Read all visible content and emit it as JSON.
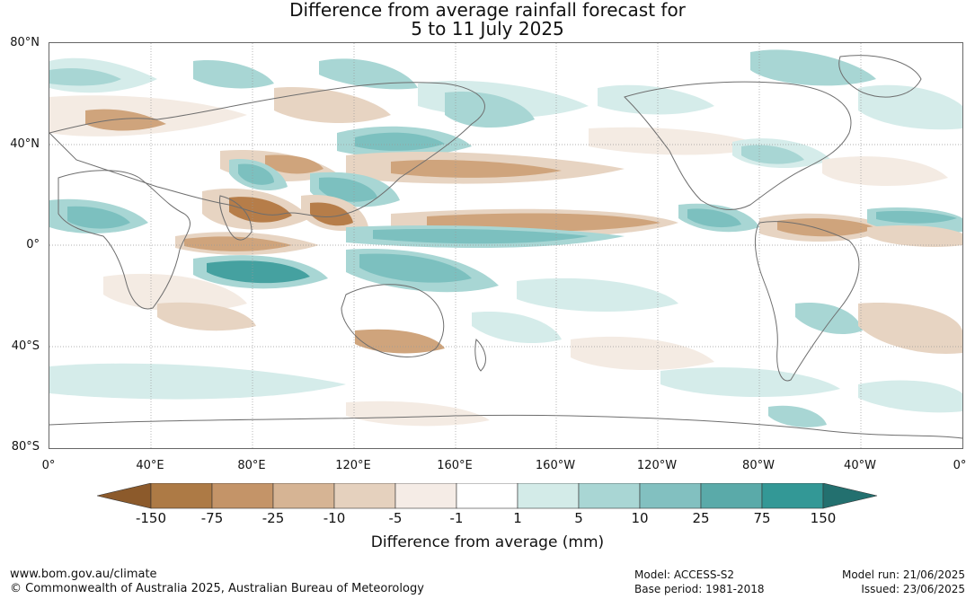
{
  "title_line1": "Difference from average rainfall forecast for",
  "title_line2": "5 to 11 July 2025",
  "lat_labels": [
    "80°N",
    "40°N",
    "0°",
    "40°S",
    "80°S"
  ],
  "lon_labels": [
    "0°",
    "40°E",
    "80°E",
    "120°E",
    "160°E",
    "160°W",
    "120°W",
    "80°W",
    "40°W",
    "0°"
  ],
  "colorbar": {
    "title": "Difference from average (mm)",
    "ticks": [
      "-150",
      "-75",
      "-25",
      "-10",
      "-5",
      "-1",
      "1",
      "5",
      "10",
      "25",
      "75",
      "150"
    ],
    "colors": [
      "#8c5a2b",
      "#ad7a45",
      "#c49468",
      "#d6b494",
      "#e5d1be",
      "#f5ece6",
      "#ffffff",
      "#d3ebe8",
      "#a9d6d4",
      "#82c0c0",
      "#5aaaa9",
      "#339896",
      "#23706f"
    ]
  },
  "colors": {
    "dry_strong": "#b67d49",
    "dry_mid": "#cfa47c",
    "dry_light": "#e7d4c2",
    "dry_faint": "#f4ebe3",
    "wet_faint": "#d5ecea",
    "wet_light": "#a8d6d4",
    "wet_mid": "#7cc0bf",
    "wet_strong": "#45a1a0",
    "coast": "#6e6e6e"
  },
  "footer": {
    "url": "www.bom.gov.au/climate",
    "copyright": "© Commonwealth of Australia 2025, Australian Bureau of Meteorology",
    "model": "Model: ACCESS-S2",
    "base_period": "Base period: 1981-2018",
    "model_run": "Model run: 21/06/2025",
    "issued": "Issued: 23/06/2025"
  }
}
